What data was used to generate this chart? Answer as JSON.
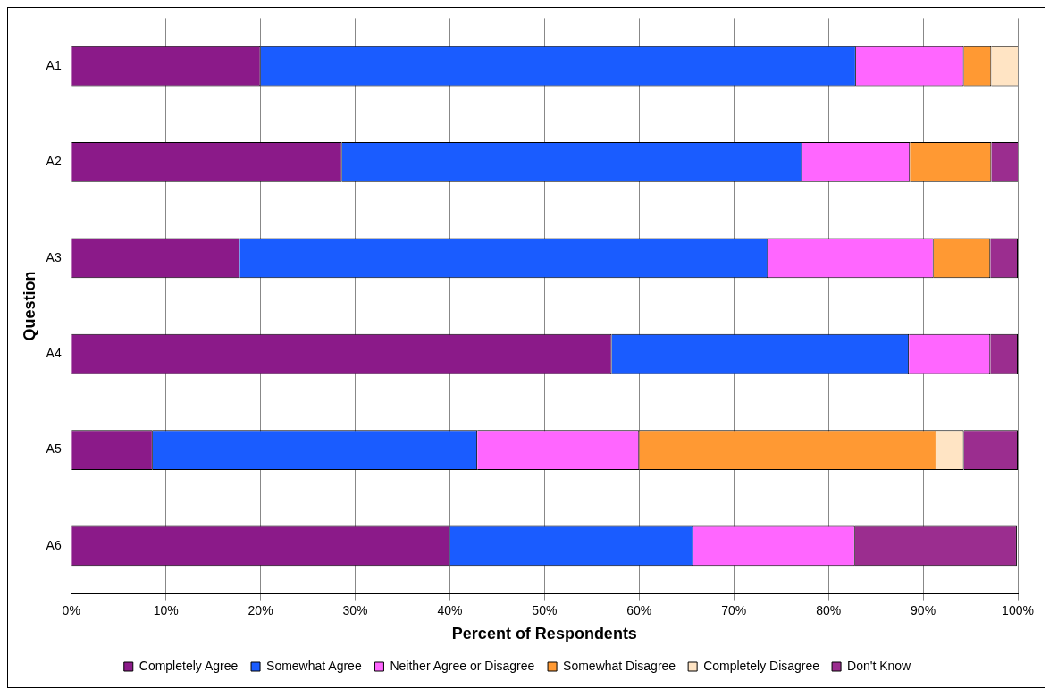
{
  "chart_data": {
    "type": "bar",
    "orientation": "horizontal",
    "stacked": true,
    "xlabel": "Percent of Respondents",
    "ylabel": "Question",
    "categories": [
      "A1",
      "A2",
      "A3",
      "A4",
      "A5",
      "A6"
    ],
    "series": [
      {
        "name": "Completely Agree",
        "color": "#8b1a89",
        "values": [
          20,
          28.6,
          17.8,
          57.1,
          8.6,
          40
        ]
      },
      {
        "name": "Somewhat Agree",
        "color": "#1a5cff",
        "values": [
          62.9,
          48.6,
          55.8,
          31.4,
          34.3,
          25.7
        ]
      },
      {
        "name": "Neither Agree or Disagree",
        "color": "#ff66ff",
        "values": [
          11.4,
          11.4,
          17.5,
          8.6,
          17.1,
          17.1
        ]
      },
      {
        "name": "Somewhat Disagree",
        "color": "#ff9933",
        "values": [
          2.9,
          8.6,
          6,
          0,
          31.4,
          0
        ]
      },
      {
        "name": "Completely Disagree",
        "color": "#ffe4c4",
        "values": [
          2.9,
          0,
          0,
          0,
          2.9,
          0
        ]
      },
      {
        "name": "Don't Know",
        "color": "#9b2d8f",
        "values": [
          0,
          2.9,
          2.9,
          2.9,
          5.7,
          17.1
        ]
      }
    ],
    "xlim": [
      0,
      100
    ],
    "xticks": [
      {
        "value": 0,
        "label": "0%"
      },
      {
        "value": 10,
        "label": "10%"
      },
      {
        "value": 20,
        "label": "20%"
      },
      {
        "value": 30,
        "label": "30%"
      },
      {
        "value": 40,
        "label": "40%"
      },
      {
        "value": 50,
        "label": "50%"
      },
      {
        "value": 60,
        "label": "60%"
      },
      {
        "value": 70,
        "label": "70%"
      },
      {
        "value": 80,
        "label": "80%"
      },
      {
        "value": 90,
        "label": "90%"
      },
      {
        "value": 100,
        "label": "100%"
      }
    ],
    "grid": "x",
    "legend": "bottom"
  }
}
